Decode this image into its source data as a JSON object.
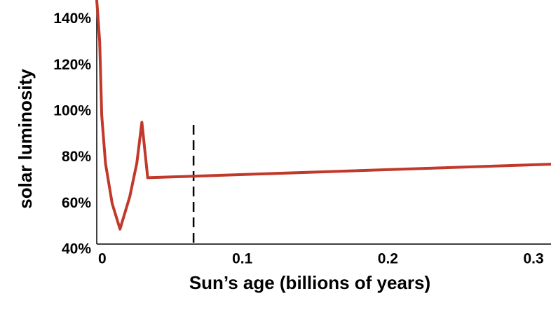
{
  "chart_data": {
    "type": "line",
    "x_label": "Sun’s age (billions of years)",
    "y_label": "solar luminosity",
    "series": [
      {
        "name": "solar luminosity",
        "color": "#c0392b",
        "x": [
          0,
          0.002,
          0.0034,
          0.006,
          0.0106,
          0.016,
          0.0227,
          0.0275,
          0.031,
          0.035,
          0.312
        ],
        "values": [
          146,
          128,
          96,
          75,
          57.6,
          46.5,
          60.6,
          75,
          92.9,
          68.8,
          74.7
        ]
      }
    ],
    "reference_line_x": 0.0665,
    "xlim": [
      0,
      0.312
    ],
    "ylim": [
      40,
      146
    ],
    "xticks": [
      0,
      0.1,
      0.2,
      0.3
    ],
    "yticks": [
      {
        "value": 40,
        "label": "40%"
      },
      {
        "value": 60,
        "label": "60%"
      },
      {
        "value": 80,
        "label": "80%"
      },
      {
        "value": 100,
        "label": "100%"
      },
      {
        "value": 120,
        "label": "120%"
      },
      {
        "value": 140,
        "label": "140%"
      }
    ]
  }
}
